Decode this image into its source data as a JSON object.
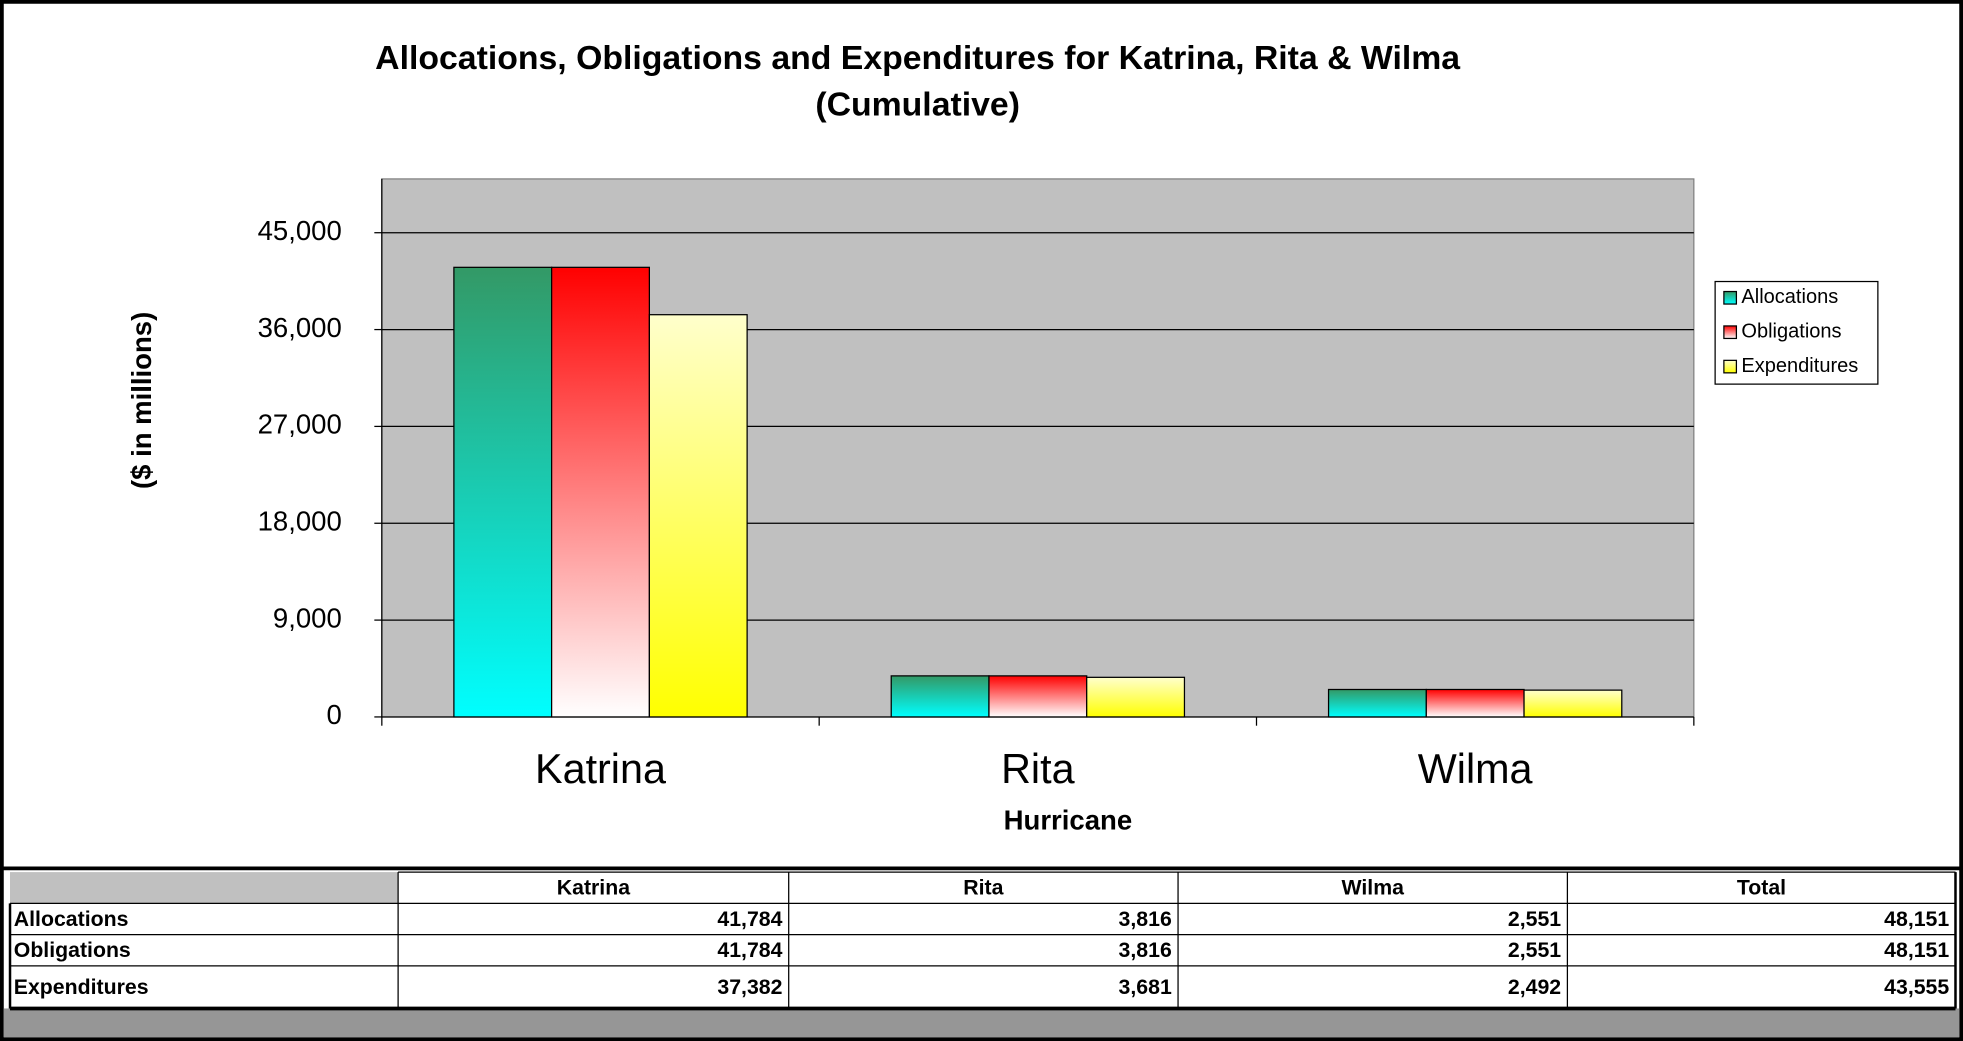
{
  "chart_data": {
    "type": "bar",
    "title": "Allocations, Obligations and Expenditures for Katrina, Rita & Wilma",
    "subtitle": "(Cumulative)",
    "y_label": "($ in millions)",
    "x_label": "Hurricane",
    "categories": [
      "Katrina",
      "Rita",
      "Wilma"
    ],
    "series": [
      {
        "name": "Allocations",
        "color": "#339966",
        "gradient": [
          "#339966",
          "#00ffff"
        ],
        "values": [
          41784,
          3816,
          2551
        ],
        "value_labels": [
          "41,784",
          "3,816",
          "2,551"
        ]
      },
      {
        "name": "Obligations",
        "color": "#ff0000",
        "gradient": [
          "#ff0000",
          "#ffffff"
        ],
        "values": [
          41784,
          3816,
          2551
        ],
        "value_labels": [
          "41,784",
          "3,816",
          "2,551"
        ]
      },
      {
        "name": "Expenditures",
        "color": "#ffff00",
        "gradient": [
          "#ffffcc",
          "#ffff00"
        ],
        "values": [
          37382,
          3681,
          2492
        ],
        "value_labels": [
          "37,382",
          "3,681",
          "2,492"
        ]
      }
    ],
    "ylim": [
      0,
      50000
    ],
    "yticks": [
      0,
      {
        "value": 9000,
        "label": "9,000"
      },
      {
        "value": 18000,
        "label": "18,000"
      },
      {
        "value": 27000,
        "label": "27,000"
      },
      {
        "value": 36000,
        "label": "36,000"
      },
      {
        "value": 45000,
        "label": "45,000"
      }
    ],
    "grid": true,
    "legend": "right",
    "plot_background": "#c0c0c0"
  },
  "table": {
    "total_header": "Total",
    "totals": [
      "48,151",
      "48,151",
      "43,555"
    ]
  }
}
